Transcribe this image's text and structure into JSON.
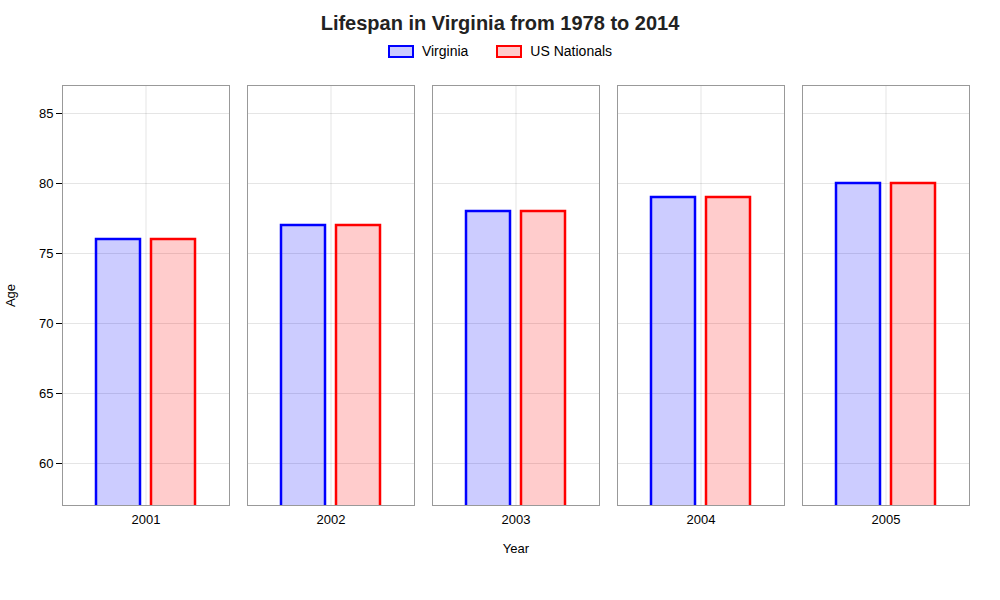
{
  "chart_data": {
    "type": "bar",
    "title": "Lifespan in Virginia from 1978 to 2014",
    "xlabel": "Year",
    "ylabel": "Age",
    "categories": [
      "2001",
      "2002",
      "2003",
      "2004",
      "2005"
    ],
    "series": [
      {
        "name": "Virginia",
        "color": "#0000ff",
        "values": [
          76,
          77,
          78,
          79,
          80
        ]
      },
      {
        "name": "US Nationals",
        "color": "#ff0000",
        "values": [
          76,
          77,
          78,
          79,
          80
        ]
      }
    ],
    "ylim": [
      57,
      87
    ],
    "yticks": [
      60,
      65,
      70,
      75,
      80,
      85
    ],
    "grid": true,
    "legend": "top"
  }
}
